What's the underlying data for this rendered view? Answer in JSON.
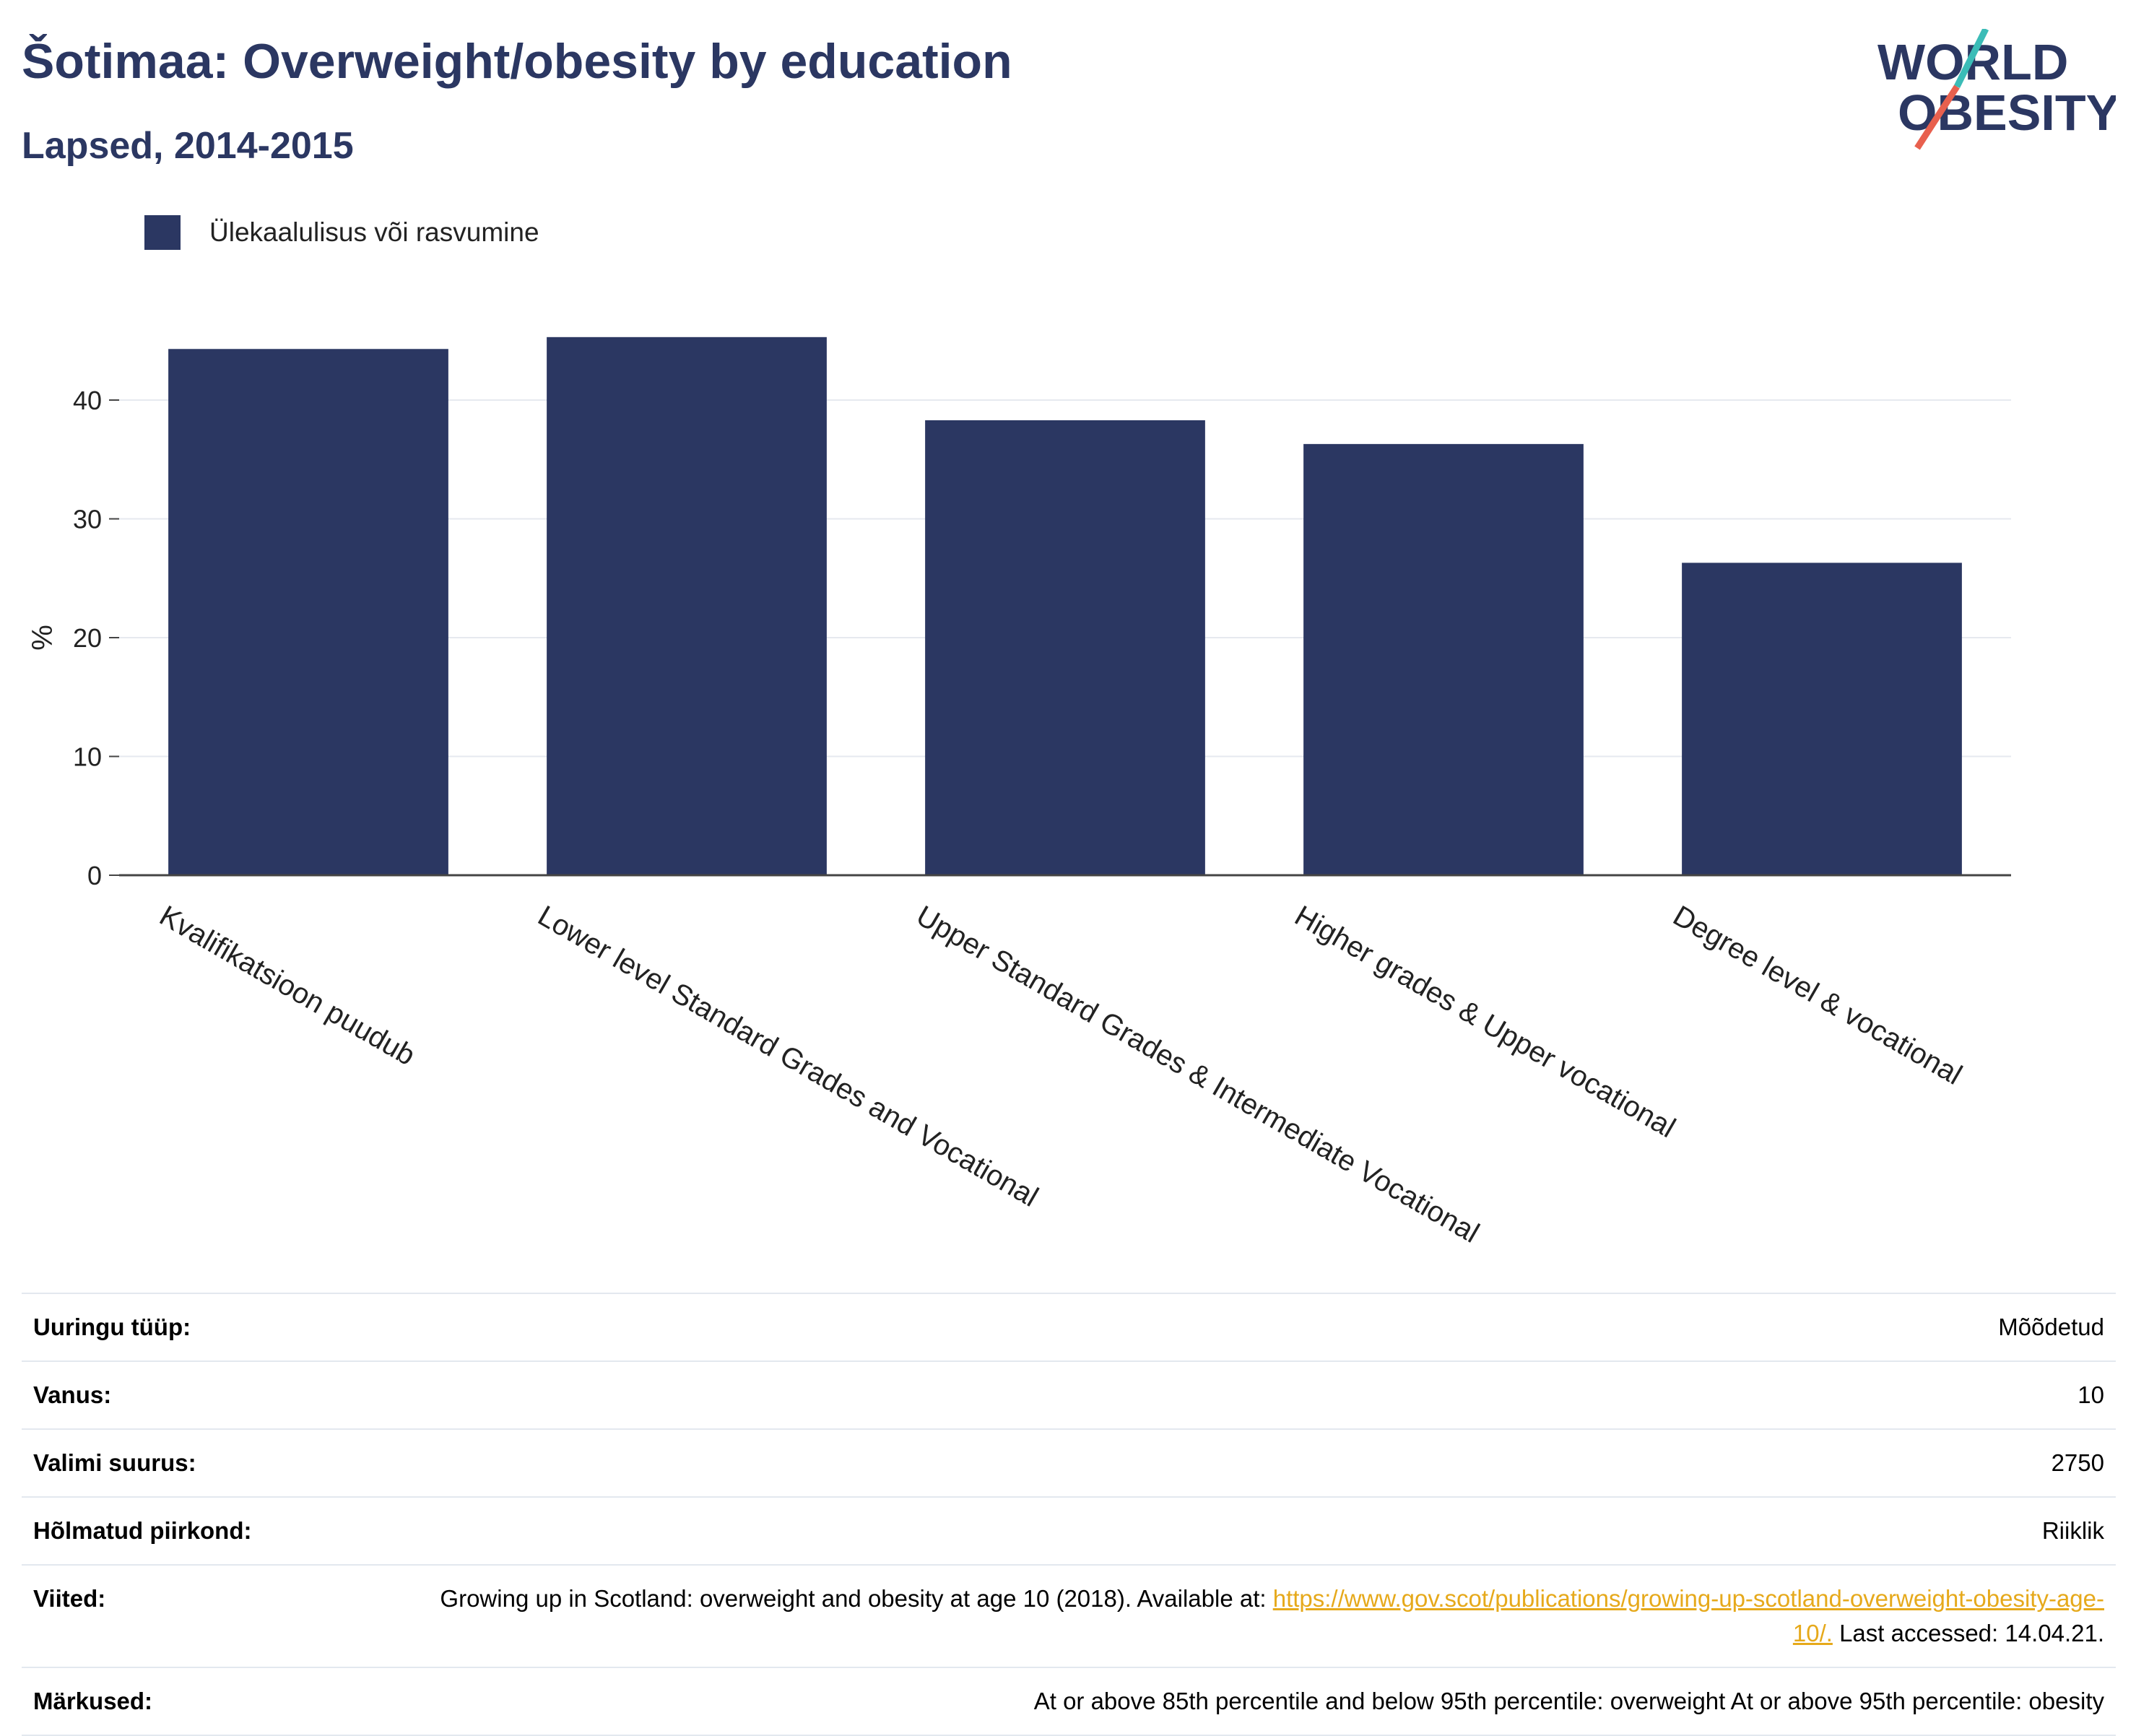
{
  "header": {
    "title": "Šotimaa: Overweight/obesity by education",
    "subtitle": "Lapsed, 2014-2015",
    "logo_line1": "WORLD",
    "logo_line2": "OBESITY"
  },
  "colors": {
    "bar": "#2b3762",
    "title": "#2b3762",
    "link": "#e6a91b",
    "logo_teal": "#3bbcb7",
    "logo_red": "#e8604e"
  },
  "chart_data": {
    "type": "bar",
    "categories": [
      "Kvalifikatsioon puudub",
      "Lower level Standard Grades and Vocational",
      "Upper Standard Grades & Intermediate Vocational",
      "Higher grades & Upper vocational",
      "Degree level & vocational"
    ],
    "series": [
      {
        "name": "Ülekaalulisus või rasvumine",
        "values": [
          44.3,
          45.3,
          38.3,
          36.3,
          26.3
        ]
      }
    ],
    "ylabel": "%",
    "ylim": [
      0,
      50
    ],
    "yticks": [
      0,
      10,
      20,
      30,
      40
    ],
    "grid": true,
    "legend_position": "top-left"
  },
  "info": [
    {
      "key": "Uuringu tüüp:",
      "value": "Mõõdetud"
    },
    {
      "key": "Vanus:",
      "value": "10"
    },
    {
      "key": "Valimi suurus:",
      "value": "2750"
    },
    {
      "key": "Hõlmatud piirkond:",
      "value": "Riiklik"
    },
    {
      "key": "Viited:",
      "value": "Growing up in Scotland: overweight and obesity at age 10 (2018). Available at: ",
      "link": "https://www.gov.scot/publications/growing-up-scotland-overweight-obesity-age-10/.",
      "after": " Last accessed: 14.04.21."
    },
    {
      "key": "Märkused:",
      "value": "At or above 85th percentile and below 95th percentile: overweight At or above 95th percentile: obesity"
    }
  ]
}
